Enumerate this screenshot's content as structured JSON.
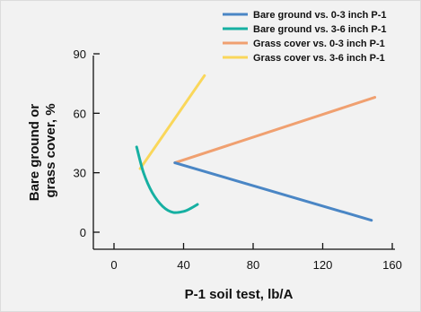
{
  "chart_data": {
    "type": "line",
    "title": "",
    "xlabel": "P-1 soil test, lb/A",
    "ylabel_lines": [
      "Bare ground or",
      "grass cover, %"
    ],
    "xlim": [
      0,
      160
    ],
    "ylim": [
      0,
      90
    ],
    "xticks": [
      "0",
      "40",
      "80",
      "120",
      "160"
    ],
    "yticks": [
      "0",
      "30",
      "60",
      "90"
    ],
    "grid": false,
    "legend_position": "top-right",
    "series": [
      {
        "name": "Bare ground vs. 0-3 inch P-1",
        "color": "#4a86c5",
        "x": [
          35,
          148
        ],
        "y": [
          35,
          6
        ]
      },
      {
        "name": "Bare ground vs. 3-6 inch P-1",
        "color": "#16b0a2",
        "x": [
          13,
          17,
          22,
          28,
          34,
          40,
          44,
          48
        ],
        "y": [
          43,
          30,
          20,
          13,
          10,
          10.5,
          12,
          14
        ]
      },
      {
        "name": "Grass cover vs. 0-3 inch P-1",
        "color": "#f0a070",
        "x": [
          35,
          150
        ],
        "y": [
          35,
          68
        ]
      },
      {
        "name": "Grass cover vs. 3-6 inch P-1",
        "color": "#fad75a",
        "x": [
          15,
          52
        ],
        "y": [
          32,
          79
        ]
      }
    ]
  }
}
